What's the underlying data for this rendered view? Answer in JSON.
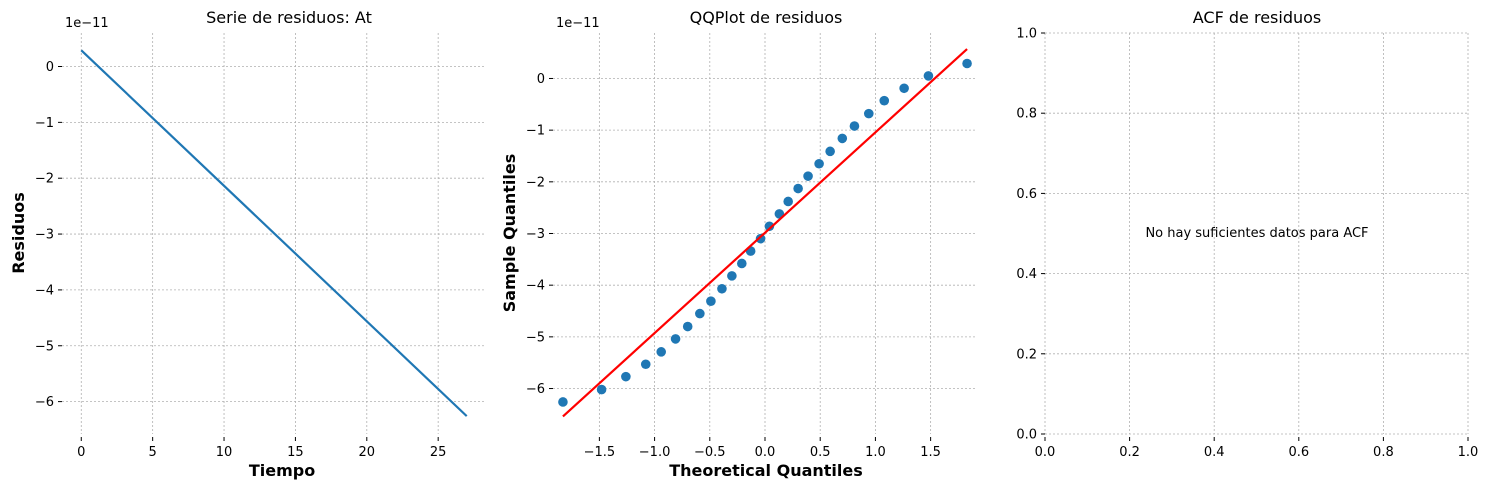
{
  "chart_data": [
    {
      "type": "line",
      "title": "Serie de residuos: At",
      "xlabel": "Tiempo",
      "ylabel": "Residuos",
      "y_offset_label": "1e−11",
      "xlim": [
        -1.35,
        28.35
      ],
      "ylim": [
        -6.58,
        0.6
      ],
      "xticks": [
        0,
        5,
        10,
        15,
        20,
        25
      ],
      "xtick_labels": [
        "0",
        "5",
        "10",
        "15",
        "20",
        "25"
      ],
      "yticks": [
        0,
        -1,
        -2,
        -3,
        -4,
        -5,
        -6
      ],
      "ytick_labels": [
        "0",
        "−1",
        "−2",
        "−3",
        "−4",
        "−5",
        "−6"
      ],
      "grid": true,
      "color": "#1f77b4",
      "series": [
        {
          "x": [
            0,
            27
          ],
          "y": [
            0.29,
            -6.26
          ]
        }
      ]
    },
    {
      "type": "scatter",
      "title": "QQPlot de residuos",
      "xlabel": "Theoretical Quantiles",
      "ylabel": "Sample Quantiles",
      "y_offset_label": "1e−11",
      "xlim": [
        -1.92,
        1.92
      ],
      "ylim": [
        -6.88,
        0.88
      ],
      "xticks": [
        -1.5,
        -1.0,
        -0.5,
        0.0,
        0.5,
        1.0,
        1.5
      ],
      "xtick_labels": [
        "−1.5",
        "−1.0",
        "−0.5",
        "0.0",
        "0.5",
        "1.0",
        "1.5"
      ],
      "yticks": [
        0,
        -1,
        -2,
        -3,
        -4,
        -5,
        -6
      ],
      "ytick_labels": [
        "0",
        "−1",
        "−2",
        "−3",
        "−4",
        "−5",
        "−6"
      ],
      "grid": true,
      "point_color": "#1f77b4",
      "line_color": "#ff0000",
      "points": {
        "x": [
          -1.83,
          -1.48,
          -1.26,
          -1.08,
          -0.94,
          -0.81,
          -0.7,
          -0.59,
          -0.49,
          -0.39,
          -0.3,
          -0.21,
          -0.13,
          -0.04,
          0.04,
          0.13,
          0.21,
          0.3,
          0.39,
          0.49,
          0.59,
          0.7,
          0.81,
          0.94,
          1.08,
          1.26,
          1.48,
          1.83
        ],
        "y": [
          -6.26,
          -6.02,
          -5.77,
          -5.53,
          -5.29,
          -5.04,
          -4.8,
          -4.55,
          -4.31,
          -4.07,
          -3.82,
          -3.58,
          -3.34,
          -3.1,
          -2.86,
          -2.62,
          -2.38,
          -2.13,
          -1.89,
          -1.65,
          -1.41,
          -1.16,
          -0.92,
          -0.68,
          -0.43,
          -0.19,
          0.05,
          0.29
        ]
      },
      "reference_line": {
        "x": [
          -1.83,
          1.83
        ],
        "y": [
          -6.54,
          0.57
        ]
      }
    },
    {
      "type": "line",
      "title": "ACF de residuos",
      "annotation": "No hay suficientes datos para ACF",
      "xlim": [
        0,
        1
      ],
      "ylim": [
        0,
        1
      ],
      "xticks": [
        0,
        0.2,
        0.4,
        0.6,
        0.8,
        1.0
      ],
      "xtick_labels": [
        "0.0",
        "0.2",
        "0.4",
        "0.6",
        "0.8",
        "1.0"
      ],
      "yticks": [
        0,
        0.2,
        0.4,
        0.6,
        0.8,
        1.0
      ],
      "ytick_labels": [
        "0.0",
        "0.2",
        "0.4",
        "0.6",
        "0.8",
        "1.0"
      ],
      "grid": true
    }
  ]
}
